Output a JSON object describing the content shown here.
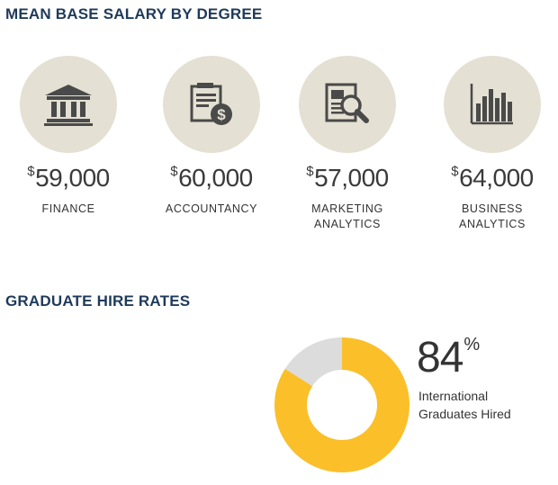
{
  "salary_section": {
    "title": "MEAN BASE SALARY BY DEGREE",
    "items": [
      {
        "icon": "bank-icon",
        "currency": "$",
        "amount": "59,000",
        "label_lines": [
          "FINANCE"
        ]
      },
      {
        "icon": "invoice-dollar-icon",
        "currency": "$",
        "amount": "60,000",
        "label_lines": [
          "ACCOUNTANCY"
        ]
      },
      {
        "icon": "report-magnifier-icon",
        "currency": "$",
        "amount": "57,000",
        "label_lines": [
          "MARKETING",
          "ANALYTICS"
        ]
      },
      {
        "icon": "bar-chart-icon",
        "currency": "$",
        "amount": "64,000",
        "label_lines": [
          "BUSINESS",
          "ANALYTICS"
        ]
      }
    ]
  },
  "hire_section": {
    "title": "GRADUATE HIRE RATES",
    "stat": {
      "value": "84",
      "unit": "%",
      "label_lines": [
        "International",
        "Graduates Hired"
      ],
      "fraction": 0.84
    },
    "colors": {
      "filled": "#fbbf2a",
      "remaining": "#dcdcdc"
    }
  },
  "colors": {
    "title": "#1f3a5a",
    "icon_circle": "#e4e0d3",
    "icon": "#4a4a4a"
  }
}
